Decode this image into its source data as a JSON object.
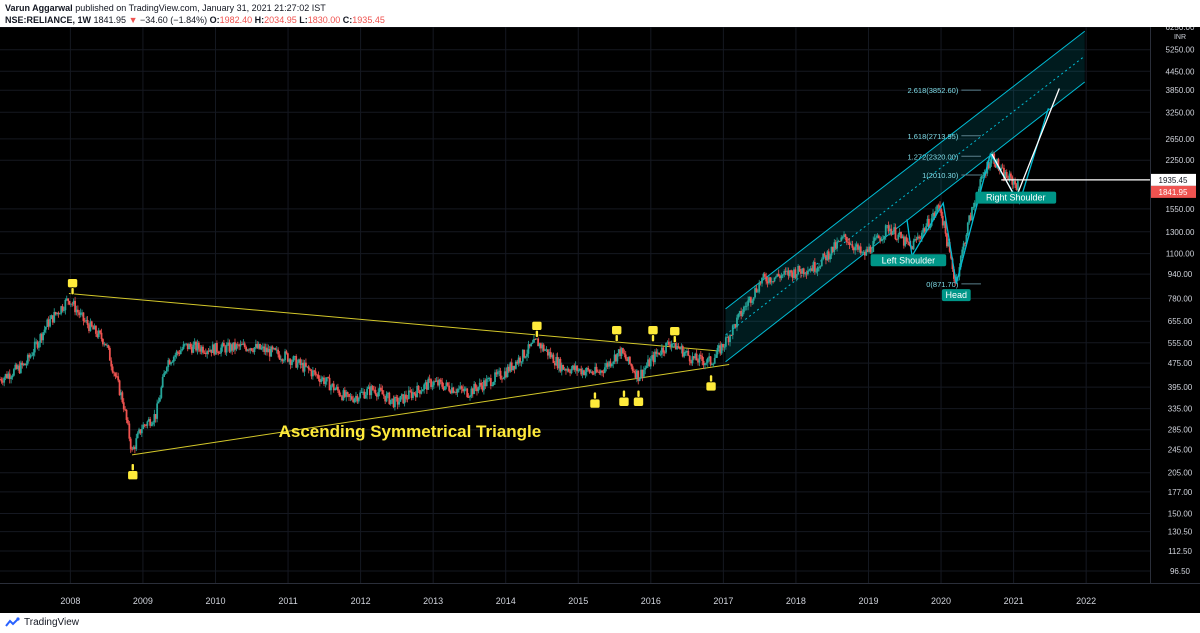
{
  "header": {
    "author": "Varun Aggarwal",
    "published": "published on TradingView.com, January 31, 2021 21:27:02 IST",
    "symbol": "NSE:RELIANCE, 1W",
    "last": "1841.95",
    "change": "−34.60 (−1.84%)",
    "o_label": "O:",
    "o_value": "1982.40",
    "h_label": "H:",
    "h_value": "2034.95",
    "l_label": "L:",
    "l_value": "1830.00",
    "c_label": "C:",
    "c_value": "1935.45"
  },
  "footer": {
    "brand": "TradingView",
    "logo_icon": "tradingview-logo-icon"
  },
  "colors": {
    "up": "#26a69a",
    "down": "#ef5350",
    "channel": "#00bcd4",
    "triangle": "#d4c82a",
    "annotation": "#ffeb3b",
    "label_bg": "#009688"
  },
  "chart_data": {
    "type": "candlestick",
    "currency": "INR",
    "y_scale": "log",
    "ylim": [
      88,
      6250
    ],
    "x_range": [
      2007.05,
      2022.9
    ],
    "x_ticks": [
      "2008",
      "2009",
      "2010",
      "2011",
      "2012",
      "2013",
      "2014",
      "2015",
      "2016",
      "2017",
      "2018",
      "2019",
      "2020",
      "2021",
      "2022"
    ],
    "y_ticks": [
      "6250.00",
      "5250.00",
      "4450.00",
      "3850.00",
      "3250.00",
      "2650.00",
      "2250.00",
      "1550.00",
      "1300.00",
      "1100.00",
      "940.00",
      "780.00",
      "655.00",
      "555.00",
      "475.00",
      "395.00",
      "335.00",
      "285.00",
      "245.00",
      "205.00",
      "177.00",
      "150.00",
      "130.50",
      "112.50",
      "96.50"
    ],
    "price_badges": [
      {
        "value": 1935.45,
        "label": "1935.45",
        "color": "#ffffff",
        "text_color": "#131722"
      },
      {
        "value": 1841.95,
        "label": "1841.95",
        "color": "#ef5350",
        "text_color": "#ffffff"
      }
    ],
    "price_path": [
      [
        2007.05,
        420
      ],
      [
        2007.4,
        470
      ],
      [
        2007.7,
        640
      ],
      [
        2008.0,
        780
      ],
      [
        2008.2,
        660
      ],
      [
        2008.5,
        560
      ],
      [
        2008.75,
        350
      ],
      [
        2008.87,
        240
      ],
      [
        2009.0,
        290
      ],
      [
        2009.2,
        320
      ],
      [
        2009.35,
        480
      ],
      [
        2009.6,
        540
      ],
      [
        2010.0,
        530
      ],
      [
        2010.5,
        540
      ],
      [
        2011.0,
        500
      ],
      [
        2011.5,
        420
      ],
      [
        2011.85,
        360
      ],
      [
        2012.2,
        390
      ],
      [
        2012.5,
        350
      ],
      [
        2013.0,
        410
      ],
      [
        2013.5,
        380
      ],
      [
        2014.0,
        440
      ],
      [
        2014.45,
        560
      ],
      [
        2014.8,
        460
      ],
      [
        2015.3,
        440
      ],
      [
        2015.6,
        520
      ],
      [
        2015.85,
        430
      ],
      [
        2016.1,
        510
      ],
      [
        2016.3,
        560
      ],
      [
        2016.6,
        490
      ],
      [
        2016.85,
        480
      ],
      [
        2017.05,
        560
      ],
      [
        2017.3,
        720
      ],
      [
        2017.55,
        900
      ],
      [
        2017.9,
        940
      ],
      [
        2018.3,
        1000
      ],
      [
        2018.7,
        1250
      ],
      [
        2018.95,
        1080
      ],
      [
        2019.3,
        1350
      ],
      [
        2019.6,
        1150
      ],
      [
        2019.9,
        1450
      ],
      [
        2020.0,
        1600
      ],
      [
        2020.22,
        880
      ],
      [
        2020.4,
        1400
      ],
      [
        2020.6,
        2000
      ],
      [
        2020.72,
        2350
      ],
      [
        2020.85,
        2050
      ],
      [
        2021.05,
        1880
      ],
      [
        2021.08,
        1841.95
      ]
    ],
    "channel": {
      "lower": [
        [
          2017.05,
          480
        ],
        [
          2022.0,
          4100
        ]
      ],
      "upper": [
        [
          2017.05,
          720
        ],
        [
          2022.0,
          6050
        ]
      ],
      "mid": [
        [
          2017.05,
          590
        ],
        [
          2022.0,
          5000
        ]
      ]
    },
    "triangle": {
      "upper": [
        [
          2008.0,
          810
        ],
        [
          2017.0,
          520
        ]
      ],
      "lower": [
        [
          2008.87,
          235
        ],
        [
          2017.1,
          470
        ]
      ]
    },
    "fib_levels": [
      {
        "label": "2.618(3852.60)",
        "value": 3852.6
      },
      {
        "label": "1.618(2713.95)",
        "value": 2713.95
      },
      {
        "label": "1.272(2320.00)",
        "value": 2320.0
      },
      {
        "label": "1(2010.30)",
        "value": 2010.3
      },
      {
        "label": "0(871.70)",
        "value": 871.7
      }
    ],
    "fib_x": [
      2020.3,
      2020.57
    ],
    "zigzag": [
      [
        2019.55,
        1430
      ],
      [
        2019.62,
        1080
      ],
      [
        2020.05,
        1620
      ],
      [
        2020.23,
        875
      ],
      [
        2020.7,
        2360
      ],
      [
        2021.1,
        1620
      ],
      [
        2021.5,
        3350
      ]
    ],
    "projection": [
      [
        2020.72,
        2360
      ],
      [
        2021.05,
        1680
      ],
      [
        2021.65,
        3900
      ]
    ],
    "pattern_labels": [
      {
        "text": "Left Shoulder",
        "x": 2019.57,
        "value": 1045
      },
      {
        "text": "Head",
        "x": 2020.23,
        "value": 800
      },
      {
        "text": "Right Shoulder",
        "x": 2021.05,
        "value": 1690
      }
    ],
    "annotation": {
      "text": "Ascending Symmetrical Triangle",
      "x": 2012.7,
      "value": 270
    },
    "markers": [
      {
        "x": 2008.05,
        "value": 860,
        "dir": "down"
      },
      {
        "x": 2008.88,
        "value": 205,
        "dir": "up"
      },
      {
        "x": 2014.45,
        "value": 620,
        "dir": "down"
      },
      {
        "x": 2015.25,
        "value": 355,
        "dir": "up"
      },
      {
        "x": 2015.55,
        "value": 600,
        "dir": "down"
      },
      {
        "x": 2015.65,
        "value": 360,
        "dir": "up"
      },
      {
        "x": 2015.85,
        "value": 360,
        "dir": "up"
      },
      {
        "x": 2016.05,
        "value": 600,
        "dir": "down"
      },
      {
        "x": 2016.35,
        "value": 595,
        "dir": "down"
      },
      {
        "x": 2016.85,
        "value": 405,
        "dir": "up"
      }
    ]
  }
}
